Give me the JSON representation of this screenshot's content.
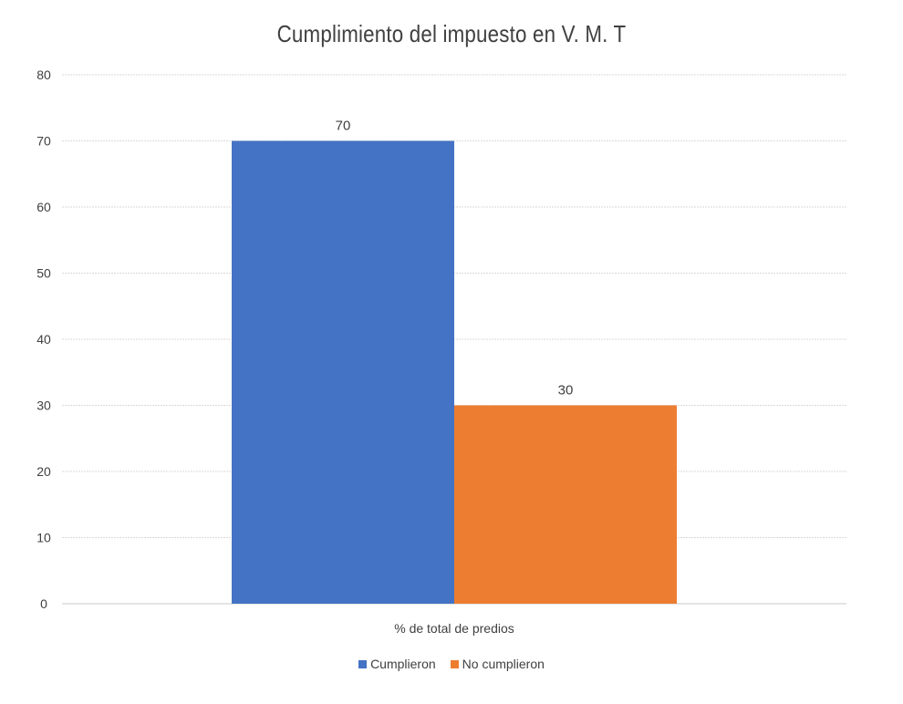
{
  "chart_data": {
    "type": "bar",
    "title": "Cumplimiento del impuesto en V. M. T",
    "categories": [
      "% de total de predios"
    ],
    "series": [
      {
        "name": "Cumplieron",
        "values": [
          70
        ],
        "color": "#4472C4"
      },
      {
        "name": "No cumplieron",
        "values": [
          30
        ],
        "color": "#ED7D31"
      }
    ],
    "ylim": [
      0,
      80
    ],
    "yticks": [
      0,
      10,
      20,
      30,
      40,
      50,
      60,
      70,
      80
    ],
    "data_labels": [
      "70",
      "30"
    ],
    "grid": true,
    "legend_position": "bottom"
  }
}
